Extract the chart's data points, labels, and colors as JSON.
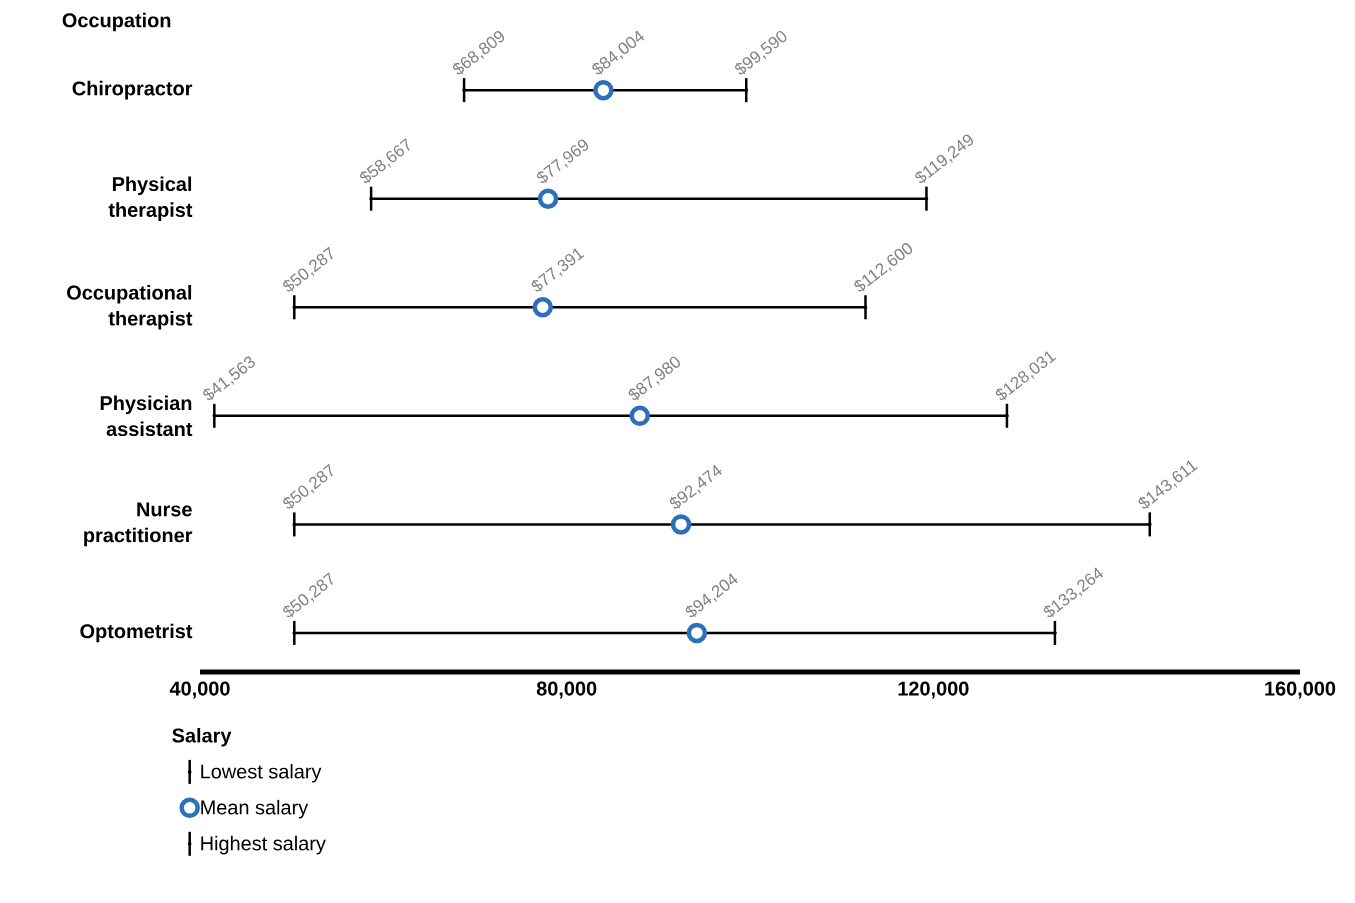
{
  "chart_data": {
    "type": "scatter",
    "orientation": "horizontal",
    "ylabel": "Occupation",
    "legend_title": "Salary",
    "legend": "bottom left",
    "categories": [
      "Chiropractor",
      "Physical therapist",
      "Occupational therapist",
      "Physician assistant",
      "Nurse practitioner",
      "Optometrist"
    ],
    "xlim": [
      40000,
      160000
    ],
    "xticks": [
      {
        "value": 40000,
        "label": "40,000"
      },
      {
        "value": 80000,
        "label": "80,000"
      },
      {
        "value": 120000,
        "label": "120,000"
      },
      {
        "value": 160000,
        "label": "160,000"
      }
    ],
    "series": [
      {
        "name": "Lowest salary",
        "color": "#000000",
        "values": [
          68809,
          58667,
          50287,
          41563,
          50287,
          50287
        ],
        "value_labels": [
          "$68,809",
          "$58,667",
          "$50,287",
          "$41,563",
          "$50,287",
          "$50,287"
        ]
      },
      {
        "name": "Mean salary",
        "color": "#2e6fba",
        "marker": "circle",
        "values": [
          84004,
          77969,
          77391,
          87980,
          92474,
          94204
        ],
        "value_labels": [
          "$84,004",
          "$77,969",
          "$77,391",
          "$87,980",
          "$92,474",
          "$94,204"
        ]
      },
      {
        "name": "Highest salary",
        "color": "#000000",
        "values": [
          99590,
          119249,
          112600,
          128031,
          143611,
          133264
        ],
        "value_labels": [
          "$99,590",
          "$119,249",
          "$112,600",
          "$128,031",
          "$143,611",
          "$133,264"
        ]
      }
    ]
  }
}
